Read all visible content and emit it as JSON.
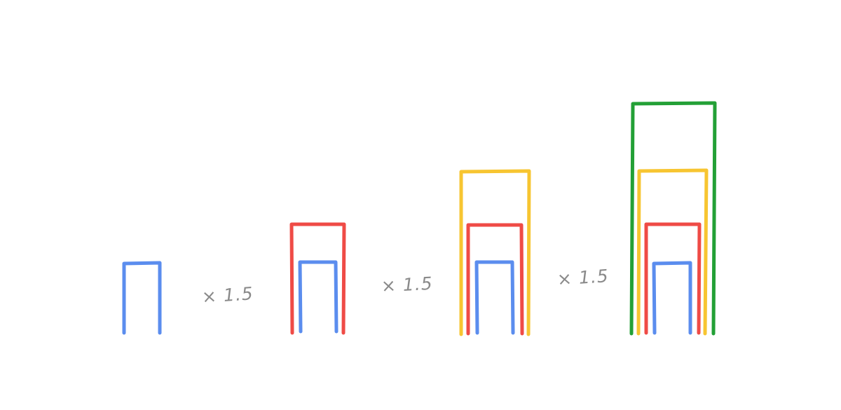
{
  "colors": {
    "blue": "#5b8dee",
    "red": "#ef4b46",
    "yellow": "#f7c531",
    "green": "#23a036",
    "label": "#8a8a8a"
  },
  "multipliers": [
    {
      "label": "× 1.5"
    },
    {
      "label": "× 1.5"
    },
    {
      "label": "× 1.5"
    }
  ]
}
